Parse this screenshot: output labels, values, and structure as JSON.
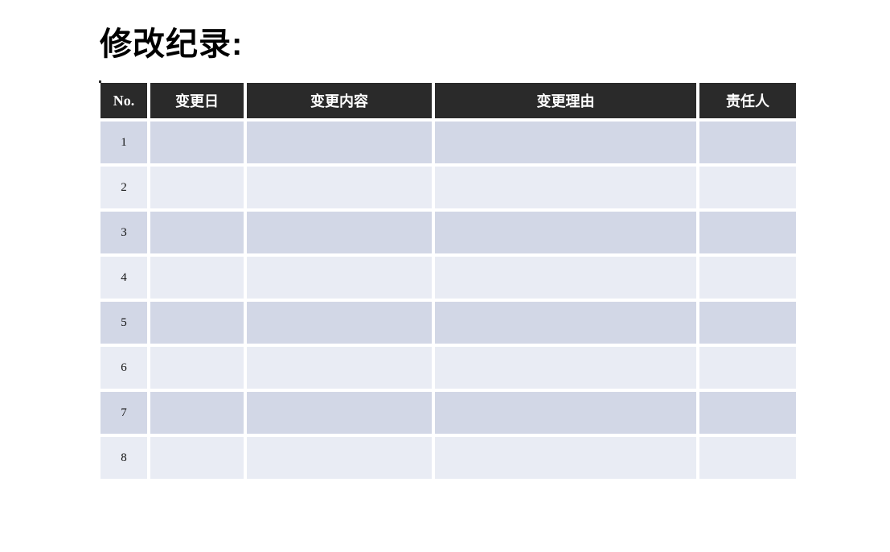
{
  "title": "修改纪录:",
  "table": {
    "headers": [
      "No.",
      "变更日",
      "变更内容",
      "变更理由",
      "责任人"
    ],
    "rows": [
      {
        "no": "1",
        "change_date": "",
        "change_content": "",
        "change_reason": "",
        "owner": ""
      },
      {
        "no": "2",
        "change_date": "",
        "change_content": "",
        "change_reason": "",
        "owner": ""
      },
      {
        "no": "3",
        "change_date": "",
        "change_content": "",
        "change_reason": "",
        "owner": ""
      },
      {
        "no": "4",
        "change_date": "",
        "change_content": "",
        "change_reason": "",
        "owner": ""
      },
      {
        "no": "5",
        "change_date": "",
        "change_content": "",
        "change_reason": "",
        "owner": ""
      },
      {
        "no": "6",
        "change_date": "",
        "change_content": "",
        "change_reason": "",
        "owner": ""
      },
      {
        "no": "7",
        "change_date": "",
        "change_content": "",
        "change_reason": "",
        "owner": ""
      },
      {
        "no": "8",
        "change_date": "",
        "change_content": "",
        "change_reason": "",
        "owner": ""
      }
    ]
  },
  "colors": {
    "header_bg": "#2a2a2a",
    "header_text": "#ffffff",
    "row_odd_bg": "#d2d7e6",
    "row_even_bg": "#e9ecf4",
    "page_bg": "#ffffff",
    "title_text": "#000000"
  }
}
